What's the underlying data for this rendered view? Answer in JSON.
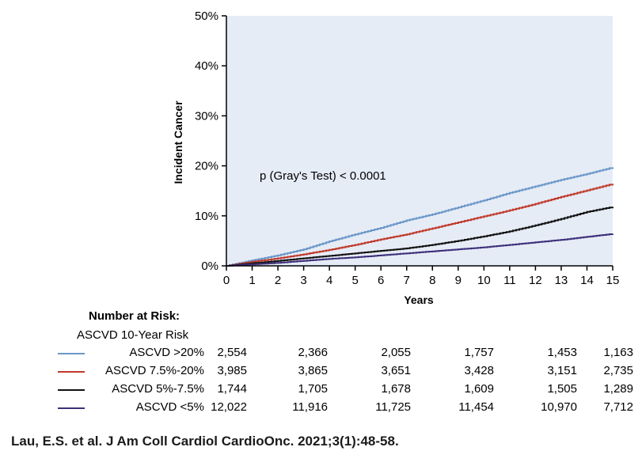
{
  "chart_data": {
    "type": "line",
    "xlabel": "Years",
    "ylabel": "Incident Cancer",
    "xlim": [
      0,
      15
    ],
    "ylim": [
      0,
      50
    ],
    "x_ticks": [
      "0",
      "1",
      "2",
      "3",
      "4",
      "5",
      "6",
      "7",
      "8",
      "9",
      "10",
      "11",
      "12",
      "13",
      "14",
      "15"
    ],
    "y_ticks": [
      "0%",
      "10%",
      "20%",
      "30%",
      "40%",
      "50%"
    ],
    "annotation": "p (Gray's Test) < 0.0001",
    "grid": false,
    "background_color": "#e6ecf6",
    "series": [
      {
        "name": "ASCVD >20%",
        "color": "#6a96c8",
        "x": [
          0,
          1,
          2,
          3,
          4,
          5,
          6,
          7,
          8,
          9,
          10,
          11,
          12,
          13,
          14,
          15
        ],
        "y": [
          0,
          1.1,
          2.1,
          3.3,
          4.9,
          6.3,
          7.6,
          9.1,
          10.3,
          11.7,
          13.1,
          14.6,
          15.9,
          17.2,
          18.4,
          19.7
        ]
      },
      {
        "name": "ASCVD 7.5%-20%",
        "color": "#c0392b",
        "x": [
          0,
          1,
          2,
          3,
          4,
          5,
          6,
          7,
          8,
          9,
          10,
          11,
          12,
          13,
          14,
          15
        ],
        "y": [
          0,
          0.8,
          1.5,
          2.3,
          3.2,
          4.2,
          5.3,
          6.3,
          7.5,
          8.7,
          9.9,
          11.1,
          12.4,
          13.8,
          15.1,
          16.4
        ]
      },
      {
        "name": "ASCVD 5%-7.5%",
        "color": "#111111",
        "x": [
          0,
          1,
          2,
          3,
          4,
          5,
          6,
          7,
          8,
          9,
          10,
          11,
          12,
          13,
          14,
          15
        ],
        "y": [
          0,
          0.5,
          1.0,
          1.5,
          2.0,
          2.5,
          3.0,
          3.5,
          4.2,
          5.0,
          5.9,
          6.9,
          8.1,
          9.4,
          10.8,
          11.8
        ]
      },
      {
        "name": "ASCVD <5%",
        "color": "#3d2f7a",
        "x": [
          0,
          1,
          2,
          3,
          4,
          5,
          6,
          7,
          8,
          9,
          10,
          11,
          12,
          13,
          14,
          15
        ],
        "y": [
          0,
          0.3,
          0.6,
          1.0,
          1.4,
          1.7,
          2.1,
          2.5,
          2.9,
          3.3,
          3.7,
          4.2,
          4.7,
          5.2,
          5.8,
          6.4
        ]
      }
    ]
  },
  "risk_table": {
    "title": "Number at Risk:",
    "subtitle": "ASCVD 10-Year Risk",
    "rows": [
      {
        "label": "ASCVD >20%",
        "color": "#6a96c8",
        "values": [
          "2,554",
          "2,366",
          "2,055",
          "1,757",
          "1,453",
          "1,163"
        ]
      },
      {
        "label": "ASCVD 7.5%-20%",
        "color": "#c0392b",
        "values": [
          "3,985",
          "3,865",
          "3,651",
          "3,428",
          "3,151",
          "2,735"
        ]
      },
      {
        "label": "ASCVD 5%-7.5%",
        "color": "#111111",
        "values": [
          "1,744",
          "1,705",
          "1,678",
          "1,609",
          "1,505",
          "1,289"
        ]
      },
      {
        "label": "ASCVD <5%",
        "color": "#3d2f7a",
        "values": [
          "12,022",
          "11,916",
          "11,725",
          "11,454",
          "10,970",
          "7,712"
        ]
      }
    ]
  },
  "citation": "Lau, E.S. et al. J Am Coll Cardiol CardioOnc. 2021;3(1):48-58."
}
